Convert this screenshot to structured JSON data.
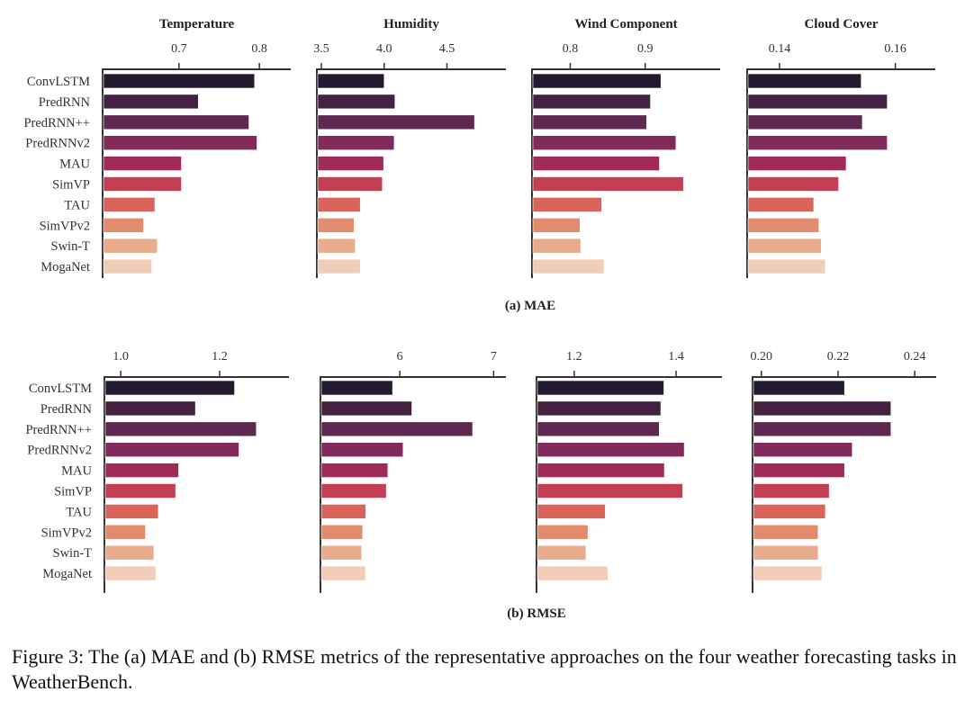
{
  "figure_caption": "Figure 3: The (a) MAE and (b) RMSE metrics of the representative approaches on the four weather forecasting tasks in WeatherBench.",
  "colors": [
    "#241a30",
    "#432142",
    "#5f2850",
    "#822b5a",
    "#a22a58",
    "#c34054",
    "#d8645a",
    "#e38c6d",
    "#e8ab8b",
    "#f0cdb6"
  ],
  "chart_data": [
    {
      "type": "bar",
      "orientation": "horizontal",
      "group": "(a) MAE",
      "title": "Temperature",
      "categories": [
        "ConvLSTM",
        "PredRNN",
        "PredRNN++",
        "PredRNNv2",
        "MAU",
        "SimVP",
        "TAU",
        "SimVPv2",
        "Swin-T",
        "MogaNet"
      ],
      "values": [
        0.794,
        0.724,
        0.787,
        0.797,
        0.703,
        0.703,
        0.67,
        0.656,
        0.673,
        0.666
      ],
      "xticks": [
        "0.7",
        "0.8"
      ],
      "xlim": [
        0.605,
        0.839
      ]
    },
    {
      "type": "bar",
      "orientation": "horizontal",
      "group": "(a) MAE",
      "title": "Humidity",
      "categories": [
        "ConvLSTM",
        "PredRNN",
        "PredRNN++",
        "PredRNNv2",
        "MAU",
        "SimVP",
        "TAU",
        "SimVPv2",
        "Swin-T",
        "MogaNet"
      ],
      "values": [
        4.0,
        4.086,
        4.72,
        4.08,
        3.996,
        3.986,
        3.81,
        3.76,
        3.77,
        3.81
      ],
      "xticks": [
        "3.5",
        "4.0",
        "4.5"
      ],
      "xlim": [
        3.464,
        4.97
      ]
    },
    {
      "type": "bar",
      "orientation": "horizontal",
      "group": "(a) MAE",
      "title": "Wind Component",
      "categories": [
        "ConvLSTM",
        "PredRNN",
        "PredRNN++",
        "PredRNNv2",
        "MAU",
        "SimVP",
        "TAU",
        "SimVPv2",
        "Swin-T",
        "MogaNet"
      ],
      "values": [
        0.921,
        0.907,
        0.902,
        0.941,
        0.919,
        0.951,
        0.842,
        0.813,
        0.814,
        0.845
      ],
      "xticks": [
        "0.8",
        "0.9"
      ],
      "xlim": [
        0.749,
        1.0
      ]
    },
    {
      "type": "bar",
      "orientation": "horizontal",
      "group": "(a) MAE",
      "title": "Cloud Cover",
      "categories": [
        "ConvLSTM",
        "PredRNN",
        "PredRNN++",
        "PredRNNv2",
        "MAU",
        "SimVP",
        "TAU",
        "SimVPv2",
        "Swin-T",
        "MogaNet"
      ],
      "values": [
        0.1541,
        0.1586,
        0.1543,
        0.1586,
        0.1515,
        0.1502,
        0.1459,
        0.1468,
        0.1472,
        0.1479
      ],
      "xticks": [
        "0.14",
        "0.16"
      ],
      "xlim": [
        0.1344,
        0.1669
      ]
    },
    {
      "type": "bar",
      "orientation": "horizontal",
      "group": "(b) RMSE",
      "title": "Temperature",
      "categories": [
        "ConvLSTM",
        "PredRNN",
        "PredRNN++",
        "PredRNNv2",
        "MAU",
        "SimVP",
        "TAU",
        "SimVPv2",
        "Swin-T",
        "MogaNet"
      ],
      "values": [
        1.23,
        1.151,
        1.274,
        1.239,
        1.117,
        1.111,
        1.076,
        1.05,
        1.067,
        1.071
      ],
      "xticks": [
        "1.0",
        "1.2"
      ],
      "xlim": [
        0.967,
        1.34
      ]
    },
    {
      "type": "bar",
      "orientation": "horizontal",
      "group": "(b) RMSE",
      "title": "Humidity",
      "categories": [
        "ConvLSTM",
        "PredRNN",
        "PredRNN++",
        "PredRNNv2",
        "MAU",
        "SimVP",
        "TAU",
        "SimVPv2",
        "Swin-T",
        "MogaNet"
      ],
      "values": [
        5.923,
        6.128,
        6.776,
        6.035,
        5.872,
        5.856,
        5.637,
        5.603,
        5.593,
        5.635
      ],
      "xticks": [
        "6",
        "7"
      ],
      "xlim": [
        5.154,
        7.131
      ]
    },
    {
      "type": "bar",
      "orientation": "horizontal",
      "group": "(b) RMSE",
      "title": "Wind Component",
      "categories": [
        "ConvLSTM",
        "PredRNN",
        "PredRNN++",
        "PredRNNv2",
        "MAU",
        "SimVP",
        "TAU",
        "SimVPv2",
        "Swin-T",
        "MogaNet"
      ],
      "values": [
        1.376,
        1.37,
        1.367,
        1.416,
        1.377,
        1.413,
        1.261,
        1.227,
        1.223,
        1.266
      ],
      "xticks": [
        "1.2",
        "1.4"
      ],
      "xlim": [
        1.126,
        1.49
      ]
    },
    {
      "type": "bar",
      "orientation": "horizontal",
      "group": "(b) RMSE",
      "title": "Cloud Cover",
      "categories": [
        "ConvLSTM",
        "PredRNN",
        "PredRNN++",
        "PredRNNv2",
        "MAU",
        "SimVP",
        "TAU",
        "SimVPv2",
        "Swin-T",
        "MogaNet"
      ],
      "values": [
        0.2217,
        0.2338,
        0.2338,
        0.2237,
        0.2217,
        0.2177,
        0.2167,
        0.2148,
        0.2148,
        0.2158
      ],
      "xticks": [
        "0.20",
        "0.22",
        "0.24"
      ],
      "xlim": [
        0.1977,
        0.2456
      ]
    }
  ],
  "subcaptions": [
    "(a) MAE",
    "(b) RMSE"
  ]
}
